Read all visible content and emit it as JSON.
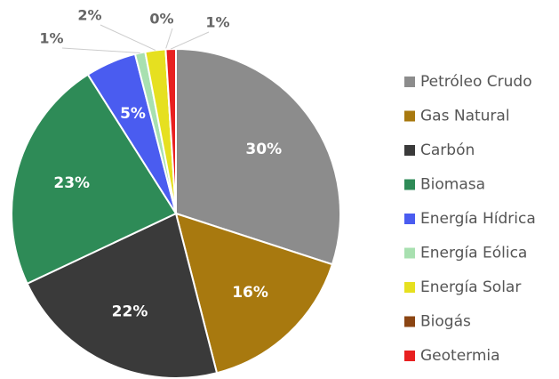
{
  "chart_data": {
    "type": "pie",
    "categories": [
      "Petróleo Crudo",
      "Gas Natural",
      "Carbón",
      "Biomasa",
      "Energía Hídrica",
      "Energía Eólica",
      "Energía Solar",
      "Biogás",
      "Geotermia"
    ],
    "values": [
      30,
      16,
      22,
      23,
      5,
      1,
      2,
      0,
      1
    ],
    "value_labels": [
      "30%",
      "16%",
      "22%",
      "23%",
      "5%",
      "1%",
      "2%",
      "0%",
      "1%"
    ],
    "colors": [
      "#8c8c8c",
      "#a8790f",
      "#3a3a3a",
      "#2e8b57",
      "#4a5cf0",
      "#a8e0b0",
      "#e6e020",
      "#8b4513",
      "#e82020"
    ],
    "legend": "right"
  }
}
